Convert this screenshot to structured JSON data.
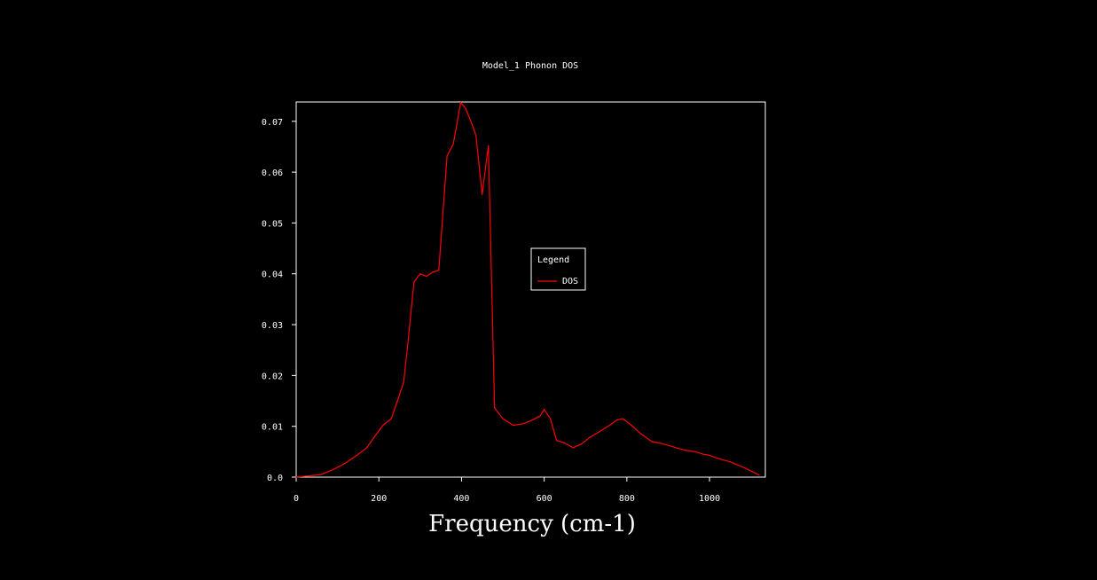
{
  "colors": {
    "background": "#000000",
    "axis": "#ffffff",
    "series": "#ff0000",
    "text": "#ffffff"
  },
  "chart_data": {
    "type": "line",
    "title": "Model_1 Phonon DOS",
    "xlabel": "Frequency (cm-1)",
    "ylabel": "",
    "xlim": [
      0,
      1135
    ],
    "ylim": [
      0,
      0.0738
    ],
    "x_ticks": [
      0,
      200,
      400,
      600,
      800,
      1000
    ],
    "x_tick_labels": [
      "0",
      "200",
      "400",
      "600",
      "800",
      "1000"
    ],
    "y_ticks": [
      0,
      0.01,
      0.02,
      0.03,
      0.04,
      0.05,
      0.06,
      0.07
    ],
    "y_tick_labels": [
      "0.0",
      "0.01",
      "0.02",
      "0.03",
      "0.04",
      "0.05",
      "0.06",
      "0.07"
    ],
    "grid": false,
    "legend": {
      "title": "Legend",
      "position": "center-right"
    },
    "series": [
      {
        "name": "DOS",
        "color": "#ff0000",
        "x": [
          0,
          60,
          90,
          120,
          150,
          170,
          190,
          210,
          230,
          245,
          260,
          270,
          285,
          300,
          315,
          330,
          345,
          365,
          380,
          398,
          410,
          425,
          435,
          450,
          465,
          480,
          500,
          525,
          550,
          575,
          590,
          600,
          615,
          630,
          650,
          670,
          690,
          710,
          735,
          760,
          775,
          790,
          810,
          830,
          860,
          880,
          910,
          940,
          965,
          985,
          1000,
          1020,
          1050,
          1080,
          1100,
          1120
        ],
        "y": [
          0.0,
          0.0005,
          0.0015,
          0.0028,
          0.0045,
          0.0057,
          0.008,
          0.0102,
          0.0115,
          0.015,
          0.0187,
          0.0261,
          0.0384,
          0.04,
          0.0395,
          0.0403,
          0.0407,
          0.0632,
          0.0655,
          0.0737,
          0.0725,
          0.0695,
          0.0672,
          0.0556,
          0.0652,
          0.0136,
          0.0115,
          0.0102,
          0.0105,
          0.0114,
          0.012,
          0.0133,
          0.0115,
          0.0072,
          0.0067,
          0.0058,
          0.0065,
          0.0078,
          0.009,
          0.0103,
          0.0112,
          0.0115,
          0.0103,
          0.0088,
          0.007,
          0.0067,
          0.006,
          0.0053,
          0.005,
          0.0045,
          0.0043,
          0.0037,
          0.003,
          0.002,
          0.0012,
          0.0004
        ]
      }
    ]
  }
}
